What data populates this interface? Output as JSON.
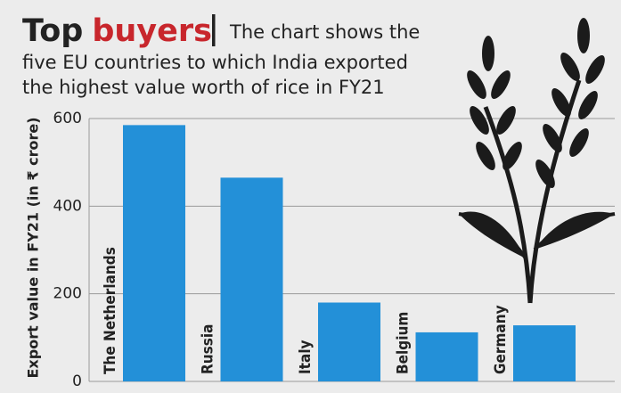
{
  "chart_data": {
    "type": "bar",
    "title": "Top",
    "title_highlight": "buyers",
    "subtitle": [
      "The chart shows the",
      "five EU countries to which India exported",
      "the highest value worth of rice in FY21"
    ],
    "y_label": "Export value in FY21 (in ₹ crore)",
    "categories": [
      "The Netherlands",
      "Russia",
      "Italy",
      "Belgium",
      "Germany"
    ],
    "values": [
      585,
      465,
      180,
      112,
      128
    ],
    "color": "#2390d8",
    "title_color": "#222222",
    "highlight_color": "#c8262c",
    "ylim": [
      0,
      600
    ],
    "yticks": [
      0,
      200,
      400,
      600
    ],
    "grid": true
  }
}
